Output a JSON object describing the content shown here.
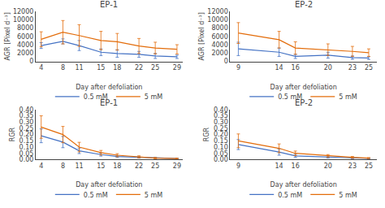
{
  "chart_data": [
    {
      "type": "line",
      "title": "EP-1",
      "x": [
        4,
        8,
        11,
        15,
        18,
        22,
        25,
        29
      ],
      "series": [
        {
          "name": "0.5 mM",
          "color": "#4472C4",
          "values": [
            3800,
            4800,
            3800,
            2200,
            1900,
            1700,
            1300,
            1100
          ],
          "error": [
            700,
            600,
            1200,
            800,
            900,
            700,
            600,
            400
          ]
        },
        {
          "name": "5 mM",
          "color": "#E36C0A",
          "values": [
            5300,
            7000,
            6200,
            5000,
            4700,
            3700,
            3200,
            2900
          ],
          "error": [
            1800,
            2800,
            2600,
            2200,
            2000,
            1800,
            1400,
            1100
          ]
        }
      ],
      "xlabel": "Day after defoliation",
      "ylabel": "AGR [Pixel d⁻¹]",
      "xlim": [
        3,
        30
      ],
      "xticks": [
        4,
        8,
        11,
        15,
        18,
        22,
        25,
        29
      ],
      "ylim": [
        0,
        12000
      ],
      "yticks": [
        0,
        2000,
        4000,
        6000,
        8000,
        10000,
        12000
      ],
      "grid": false
    },
    {
      "type": "line",
      "title": "EP-2",
      "x": [
        9,
        14,
        16,
        20,
        23,
        25
      ],
      "series": [
        {
          "name": "0.5 mM",
          "color": "#4472C4",
          "values": [
            3000,
            2200,
            1200,
            1500,
            900,
            800
          ],
          "error": [
            1600,
            1000,
            500,
            700,
            400,
            350
          ]
        },
        {
          "name": "5 mM",
          "color": "#E36C0A",
          "values": [
            6800,
            5200,
            3200,
            2800,
            2400,
            2100
          ],
          "error": [
            2500,
            2000,
            1500,
            1400,
            1200,
            900
          ]
        }
      ],
      "xlabel": "Day after defoliation",
      "ylabel": "AGR [Pixel d⁻¹]",
      "xlim": [
        8,
        26
      ],
      "xticks": [
        9,
        14,
        16,
        20,
        23,
        25
      ],
      "ylim": [
        0,
        12000
      ],
      "yticks": [
        0,
        2000,
        4000,
        6000,
        8000,
        10000,
        12000
      ],
      "grid": false
    },
    {
      "type": "line",
      "title": "EP-1",
      "x": [
        4,
        8,
        11,
        15,
        18,
        22,
        25,
        29
      ],
      "series": [
        {
          "name": "0.5 mM",
          "color": "#4472C4",
          "values": [
            0.19,
            0.14,
            0.07,
            0.04,
            0.025,
            0.018,
            0.012,
            0.008
          ],
          "error": [
            0.055,
            0.045,
            0.022,
            0.012,
            0.008,
            0.006,
            0.004,
            0.003
          ]
        },
        {
          "name": "5 mM",
          "color": "#E36C0A",
          "values": [
            0.26,
            0.2,
            0.1,
            0.055,
            0.035,
            0.022,
            0.012,
            0.008
          ],
          "error": [
            0.09,
            0.065,
            0.038,
            0.018,
            0.012,
            0.008,
            0.005,
            0.003
          ]
        }
      ],
      "xlabel": "Day after defoliation",
      "ylabel": "RGR",
      "xlim": [
        3,
        30
      ],
      "xticks": [
        4,
        8,
        11,
        15,
        18,
        22,
        25,
        29
      ],
      "ylim": [
        0,
        0.4
      ],
      "yticks": [
        {
          "value": 0,
          "label": "0.00"
        },
        0.05,
        {
          "value": 0.1,
          "label": "0.10"
        },
        0.15,
        {
          "value": 0.2,
          "label": "0.20"
        },
        0.25,
        {
          "value": 0.3,
          "label": "0.30"
        },
        0.35,
        {
          "value": 0.4,
          "label": "0.40"
        }
      ],
      "grid": false
    },
    {
      "type": "line",
      "title": "EP-2",
      "x": [
        9,
        14,
        16,
        20,
        23,
        25
      ],
      "series": [
        {
          "name": "0.5 mM",
          "color": "#4472C4",
          "values": [
            0.12,
            0.06,
            0.03,
            0.02,
            0.012,
            0.009
          ],
          "error": [
            0.04,
            0.025,
            0.012,
            0.008,
            0.005,
            0.003
          ]
        },
        {
          "name": "5 mM",
          "color": "#E36C0A",
          "values": [
            0.15,
            0.09,
            0.05,
            0.03,
            0.018,
            0.012
          ],
          "error": [
            0.055,
            0.035,
            0.018,
            0.01,
            0.007,
            0.004
          ]
        }
      ],
      "xlabel": "Day after defoliation",
      "ylabel": "RGR",
      "xlim": [
        8,
        26
      ],
      "xticks": [
        9,
        14,
        16,
        20,
        23,
        25
      ],
      "ylim": [
        0,
        0.4
      ],
      "yticks": [
        {
          "value": 0,
          "label": "0.00"
        },
        0.05,
        {
          "value": 0.1,
          "label": "0.10"
        },
        0.15,
        {
          "value": 0.2,
          "label": "0.20"
        },
        0.25,
        {
          "value": 0.3,
          "label": "0.30"
        },
        0.35,
        {
          "value": 0.4,
          "label": "0.40"
        }
      ],
      "grid": false
    }
  ]
}
